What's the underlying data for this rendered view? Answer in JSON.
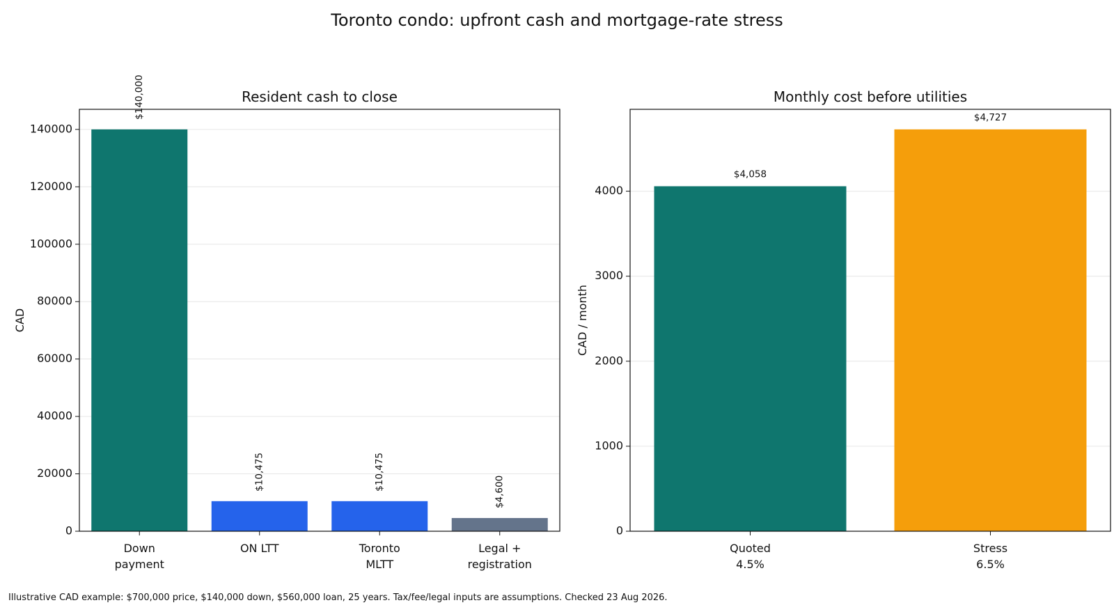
{
  "title": "Toronto condo: upfront cash and mortgage-rate stress",
  "footnote": "Illustrative CAD example: $700,000 price, $140,000 down, $560,000 loan, 25 years. Tax/fee/legal inputs are assumptions. Checked 23 Aug 2026.",
  "chart_data": [
    {
      "type": "bar",
      "title": "Resident cash to close",
      "xlabel": "",
      "ylabel": "CAD",
      "categories": [
        [
          "Down",
          "payment"
        ],
        [
          "ON LTT"
        ],
        [
          "Toronto",
          "MLTT"
        ],
        [
          "Legal +",
          "registration"
        ]
      ],
      "values": [
        140000,
        10475,
        10475,
        4600
      ],
      "data_labels": [
        "$140,000",
        "$10,475",
        "$10,475",
        "$4,600"
      ],
      "data_label_rotation": "vertical",
      "colors": [
        "#0f766e",
        "#2563eb",
        "#2563eb",
        "#64748b"
      ],
      "ylim": [
        0,
        147000
      ],
      "yticks": [
        0,
        20000,
        40000,
        60000,
        80000,
        100000,
        120000,
        140000
      ],
      "grid": "horizontal"
    },
    {
      "type": "bar",
      "title": "Monthly cost before utilities",
      "xlabel": "",
      "ylabel": "CAD / month",
      "categories": [
        [
          "Quoted",
          "4.5%"
        ],
        [
          "Stress",
          "6.5%"
        ]
      ],
      "values": [
        4058,
        4727
      ],
      "data_labels": [
        "$4,058",
        "$4,727"
      ],
      "data_label_rotation": "horizontal",
      "colors": [
        "#0f766e",
        "#f59e0b"
      ],
      "ylim": [
        0,
        4963
      ],
      "yticks": [
        0,
        1000,
        2000,
        3000,
        4000
      ],
      "grid": "horizontal"
    }
  ]
}
